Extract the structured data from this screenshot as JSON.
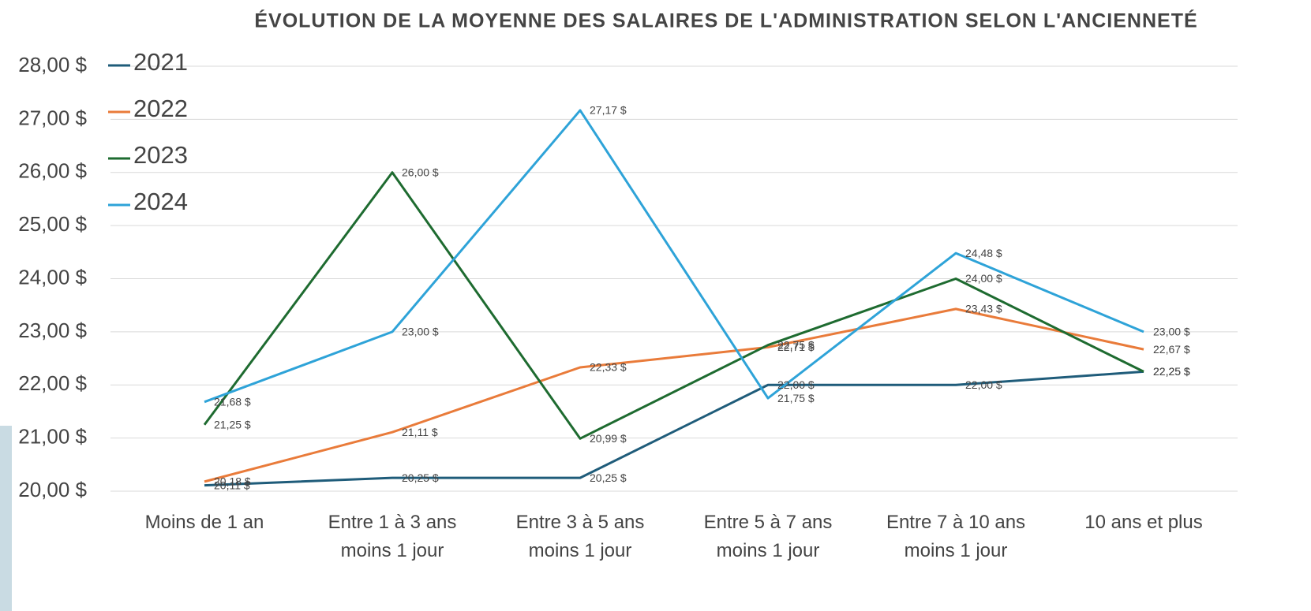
{
  "chart_data": {
    "type": "line",
    "title": "ÉVOLUTION DE LA MOYENNE DES SALAIRES DE L'ADMINISTRATION SELON L'ANCIENNETÉ",
    "categories": [
      "Moins de 1 an",
      "Entre 1 à 3 ans moins 1 jour",
      "Entre 3 à 5 ans moins 1 jour",
      "Entre 5 à 7 ans moins 1 jour",
      "Entre 7 à 10 ans moins 1 jour",
      "10 ans et plus"
    ],
    "series": [
      {
        "name": "2021",
        "color": "#1f5c7a",
        "values": [
          20.11,
          20.25,
          20.25,
          22.0,
          22.0,
          22.25
        ],
        "value_labels": [
          "20,11 $",
          "20,25 $",
          "20,25 $",
          "22,00 $",
          "22,00 $",
          "22,25 $"
        ]
      },
      {
        "name": "2022",
        "color": "#e97b3a",
        "values": [
          20.18,
          21.11,
          22.33,
          22.71,
          23.43,
          22.67
        ],
        "value_labels": [
          "20,18 $",
          "21,11 $",
          "22,33 $",
          "22,71 $",
          "23,43 $",
          "22,67 $"
        ]
      },
      {
        "name": "2023",
        "color": "#1e6b30",
        "values": [
          21.25,
          26.0,
          20.99,
          22.75,
          24.0,
          22.25
        ],
        "value_labels": [
          "21,25 $",
          "26,00 $",
          "20,99 $",
          "22,75 $",
          "24,00 $",
          "22,25 $"
        ]
      },
      {
        "name": "2024",
        "color": "#2ea3d8",
        "values": [
          21.68,
          23.0,
          27.17,
          21.75,
          24.48,
          23.0
        ],
        "value_labels": [
          "21,68 $",
          "23,00 $",
          "27,17 $",
          "21,75 $",
          "24,48 $",
          "23,00 $"
        ]
      }
    ],
    "ylim": [
      20,
      28
    ],
    "yticks": [
      {
        "value": 20,
        "label": "20,00 $"
      },
      {
        "value": 21,
        "label": "21,00 $"
      },
      {
        "value": 22,
        "label": "22,00 $"
      },
      {
        "value": 23,
        "label": "23,00 $"
      },
      {
        "value": 24,
        "label": "24,00 $"
      },
      {
        "value": 25,
        "label": "25,00 $"
      },
      {
        "value": 26,
        "label": "26,00 $"
      },
      {
        "value": 27,
        "label": "27,00 $"
      },
      {
        "value": 28,
        "label": "28,00 $"
      }
    ],
    "grid": true,
    "legend": "top-left"
  }
}
